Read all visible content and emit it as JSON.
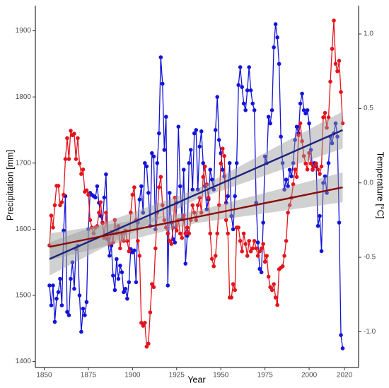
{
  "chart_data": {
    "type": "line",
    "xlabel": "Year",
    "ylabel": "Precipitation [mm]",
    "y2label": "Temperature [°C]",
    "xlim": [
      1845,
      2028
    ],
    "xticks": [
      1850,
      1875,
      1900,
      1925,
      1950,
      1975,
      2000,
      2020
    ],
    "ylim": [
      1391,
      1938
    ],
    "yticks": [
      1400,
      1500,
      1600,
      1700,
      1800,
      1900
    ],
    "y2lim": [
      -1.24,
      1.19
    ],
    "y2ticks": [
      {
        "value": -1,
        "label": "-1.0"
      },
      -0.5,
      {
        "value": 0,
        "label": "0.0"
      },
      0.5,
      {
        "value": 1,
        "label": "1.0"
      }
    ],
    "x": [
      1853,
      1854,
      1855,
      1856,
      1857,
      1858,
      1859,
      1860,
      1861,
      1862,
      1863,
      1864,
      1865,
      1866,
      1867,
      1868,
      1869,
      1870,
      1871,
      1872,
      1873,
      1874,
      1875,
      1876,
      1877,
      1878,
      1879,
      1880,
      1881,
      1882,
      1883,
      1884,
      1885,
      1886,
      1887,
      1888,
      1889,
      1890,
      1891,
      1892,
      1893,
      1894,
      1895,
      1896,
      1897,
      1898,
      1899,
      1900,
      1901,
      1902,
      1903,
      1904,
      1905,
      1906,
      1907,
      1908,
      1909,
      1910,
      1911,
      1912,
      1913,
      1914,
      1915,
      1916,
      1917,
      1918,
      1919,
      1920,
      1921,
      1922,
      1923,
      1924,
      1925,
      1926,
      1927,
      1928,
      1929,
      1930,
      1931,
      1932,
      1933,
      1934,
      1935,
      1936,
      1937,
      1938,
      1939,
      1940,
      1941,
      1942,
      1943,
      1944,
      1945,
      1946,
      1947,
      1948,
      1949,
      1950,
      1951,
      1952,
      1953,
      1954,
      1955,
      1956,
      1957,
      1958,
      1959,
      1960,
      1961,
      1962,
      1963,
      1964,
      1965,
      1966,
      1967,
      1968,
      1969,
      1970,
      1971,
      1972,
      1973,
      1974,
      1975,
      1976,
      1977,
      1978,
      1979,
      1980,
      1981,
      1982,
      1983,
      1984,
      1985,
      1986,
      1987,
      1988,
      1989,
      1990,
      1991,
      1992,
      1993,
      1994,
      1995,
      1996,
      1997,
      1998,
      1999,
      2000,
      2001,
      2002,
      2003,
      2004,
      2005,
      2006,
      2007,
      2008,
      2009,
      2010,
      2011,
      2012,
      2013,
      2014,
      2015,
      2016,
      2017,
      2018,
      2019
    ],
    "series": [
      {
        "color": "#1414d6",
        "axis": "y",
        "values": [
          1515,
          1485,
          1515,
          1460,
          1495,
          1505,
          1525,
          1485,
          1598,
          1650,
          1475,
          1470,
          1525,
          1550,
          1510,
          1570,
          1575,
          1500,
          1445,
          1480,
          1470,
          1490,
          1600,
          1655,
          1652,
          1650,
          1648,
          1665,
          1640,
          1620,
          1610,
          1648,
          1683,
          1585,
          1560,
          1575,
          1530,
          1508,
          1555,
          1525,
          1545,
          1535,
          1505,
          1510,
          1495,
          1520,
          1570,
          1565,
          1568,
          1520,
          1610,
          1645,
          1665,
          1625,
          1700,
          1695,
          1655,
          1605,
          1715,
          1710,
          1600,
          1700,
          1745,
          1860,
          1820,
          1720,
          1770,
          1515,
          1655,
          1610,
          1585,
          1580,
          1640,
          1755,
          1665,
          1615,
          1690,
          1548,
          1590,
          1700,
          1720,
          1660,
          1745,
          1750,
          1660,
          1725,
          1748,
          1700,
          1665,
          1630,
          1645,
          1690,
          1675,
          1660,
          1750,
          1800,
          1735,
          1715,
          1690,
          1680,
          1640,
          1650,
          1700,
          1620,
          1600,
          1650,
          1700,
          1818,
          1845,
          1815,
          1790,
          1780,
          1810,
          1845,
          1810,
          1790,
          1780,
          1640,
          1580,
          1540,
          1535,
          1610,
          1710,
          1700,
          1770,
          1760,
          1780,
          1875,
          1910,
          1890,
          1850,
          1740,
          1700,
          1660,
          1675,
          1665,
          1690,
          1680,
          1700,
          1735,
          1755,
          1745,
          1790,
          1805,
          1780,
          1775,
          1780,
          1760,
          1720,
          1690,
          1700,
          1695,
          1605,
          1620,
          1567,
          1670,
          1680,
          1655,
          1700,
          1740,
          1730,
          1745,
          1760,
          1740,
          1610,
          1440,
          1420
        ]
      },
      {
        "color": "#e3141c",
        "axis": "y2",
        "values": [
          -0.42,
          -0.22,
          -0.3,
          -0.15,
          -0.02,
          -0.02,
          -0.15,
          -0.13,
          -0.08,
          0.16,
          0.3,
          0.16,
          0.35,
          0.32,
          0.33,
          0.16,
          0.3,
          0.13,
          0.06,
          0.09,
          -0.06,
          -0.05,
          -0.08,
          -0.25,
          -0.3,
          -0.34,
          -0.3,
          -0.29,
          -0.2,
          -0.13,
          -0.27,
          -0.37,
          -0.2,
          -0.37,
          -0.41,
          -0.33,
          -0.4,
          -0.25,
          -0.34,
          -0.29,
          -0.44,
          -0.34,
          -0.39,
          -0.32,
          -0.39,
          -0.46,
          -0.2,
          -0.08,
          -0.03,
          -0.25,
          -0.39,
          -0.49,
          -0.94,
          -0.96,
          -0.94,
          -1.1,
          -1.08,
          -0.87,
          -0.68,
          -0.7,
          -0.44,
          -0.2,
          -0.03,
          0.04,
          -0.15,
          -0.25,
          -0.3,
          -0.34,
          -0.39,
          -0.41,
          -0.3,
          -0.1,
          -0.32,
          -0.25,
          -0.34,
          -0.37,
          -0.22,
          -0.34,
          -0.3,
          -0.34,
          -0.25,
          -0.15,
          -0.2,
          -0.25,
          -0.15,
          -0.1,
          -0.2,
          0.04,
          0.11,
          -0.01,
          -0.1,
          -0.34,
          -0.51,
          -0.56,
          -0.49,
          -0.34,
          -0.15,
          0.13,
          0.23,
          0.18,
          -0.25,
          -0.34,
          -0.77,
          -0.77,
          -0.68,
          -0.72,
          -0.3,
          -0.3,
          -0.39,
          -0.46,
          -0.34,
          -0.41,
          -0.49,
          -0.39,
          -0.46,
          -0.44,
          -0.39,
          -0.44,
          -0.49,
          -0.46,
          -0.44,
          -0.41,
          -0.53,
          -0.49,
          -0.63,
          -0.7,
          -0.72,
          -0.68,
          -0.77,
          -0.82,
          -0.58,
          -0.57,
          -0.56,
          -0.49,
          -0.39,
          -0.2,
          -0.15,
          -0.1,
          -0.01,
          0.09,
          0.04,
          0.32,
          0.4,
          0.28,
          0.18,
          0.13,
          0.09,
          0.2,
          0.13,
          0.09,
          0.11,
          0.13,
          0.09,
          0.06,
          0.11,
          0.44,
          0.47,
          0.37,
          0.44,
          0.68,
          0.9,
          1.09,
          0.8,
          0.75,
          0.82,
          0.61,
          0.4
        ]
      }
    ],
    "trends": [
      {
        "color": "#1a237e",
        "axis": "y",
        "x": [
          1853,
          2019
        ],
        "values": [
          1555,
          1750
        ],
        "band_x": [
          1853,
          1936,
          2019
        ],
        "band_lower": [
          1530,
          1645,
          1722
        ],
        "band_upper": [
          1580,
          1660,
          1778
        ]
      },
      {
        "color": "#8b0a0a",
        "axis": "y2",
        "x": [
          1853,
          2019
        ],
        "values": [
          -0.43,
          -0.03
        ],
        "band_x": [
          1853,
          1936,
          2019
        ],
        "band_lower": [
          -0.52,
          -0.27,
          -0.13
        ],
        "band_upper": [
          -0.34,
          -0.19,
          0.07
        ]
      }
    ]
  }
}
